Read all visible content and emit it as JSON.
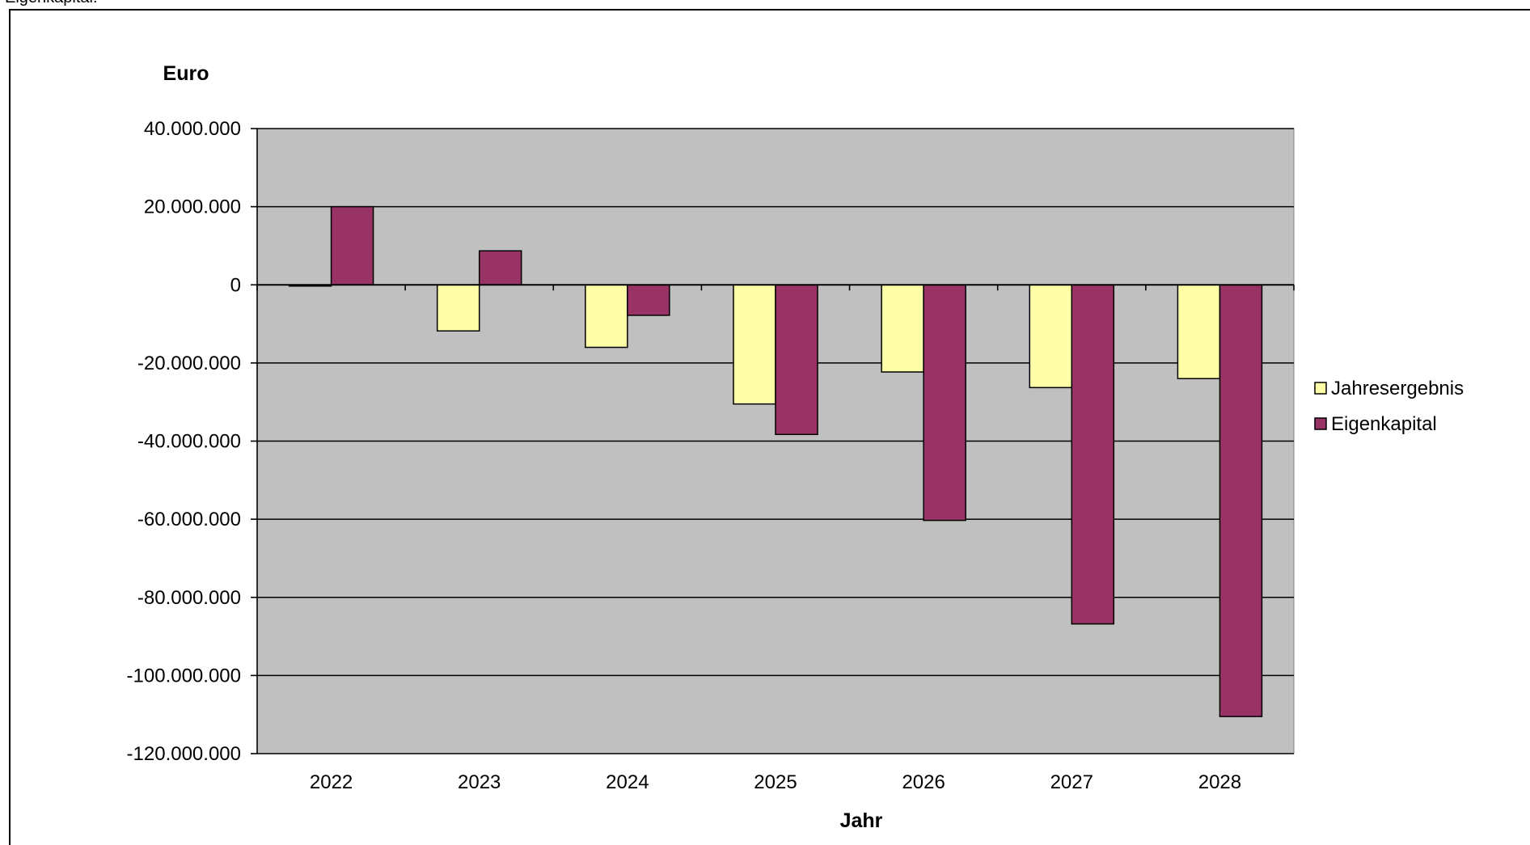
{
  "caption": "Eigenkapital:",
  "chart_data": {
    "type": "bar",
    "categories": [
      "2022",
      "2023",
      "2024",
      "2025",
      "2026",
      "2027",
      "2028"
    ],
    "series": [
      {
        "name": "Jahresergebnis",
        "color": "#FFFFA8",
        "values": [
          -300000,
          -11800000,
          -16000000,
          -30500000,
          -22300000,
          -26300000,
          -24000000
        ]
      },
      {
        "name": "Eigenkapital",
        "color": "#993366",
        "values": [
          20000000,
          8700000,
          -7800000,
          -38300000,
          -60300000,
          -86800000,
          -110500000
        ]
      }
    ],
    "ylabel": "Euro",
    "xlabel": "Jahr",
    "ylim": [
      -120000000,
      40000000
    ],
    "yticks": [
      40000000,
      20000000,
      0,
      -20000000,
      -40000000,
      -60000000,
      -80000000,
      -100000000,
      -120000000
    ],
    "ytick_labels": [
      "40.000.000",
      "20.000.000",
      "0",
      "-20.000.000",
      "-40.000.000",
      "-60.000.000",
      "-80.000.000",
      "-100.000.000",
      "-120.000.000"
    ],
    "grid": true,
    "legend_position": "right",
    "plot_background": "#C0C0C0"
  }
}
